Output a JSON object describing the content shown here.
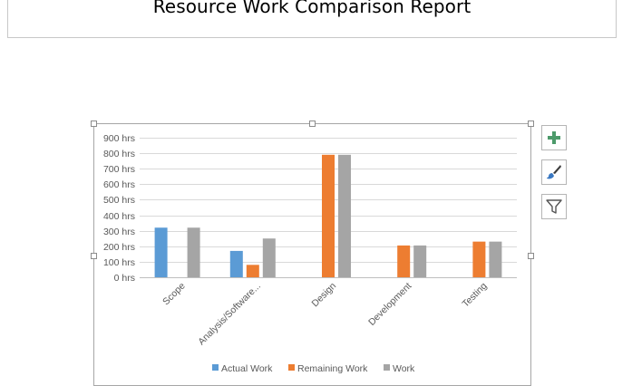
{
  "report": {
    "title": "Resource Work Comparison Report"
  },
  "chart_tools": {
    "add_element_icon": "plus-icon",
    "style_icon": "paintbrush-icon",
    "filter_icon": "funnel-icon"
  },
  "colors": {
    "actual_work": "#5b9bd5",
    "remaining_work": "#ed7d31",
    "work": "#a5a5a5",
    "add_icon": "#4c9a6a"
  },
  "chart_data": {
    "type": "bar",
    "categories": [
      "Scope",
      "Analysis/Software...",
      "Design",
      "Development",
      "Testing"
    ],
    "series": [
      {
        "name": "Actual Work",
        "values": [
          320,
          170,
          0,
          0,
          0
        ]
      },
      {
        "name": "Remaining Work",
        "values": [
          0,
          80,
          790,
          205,
          230
        ]
      },
      {
        "name": "Work",
        "values": [
          320,
          250,
          790,
          205,
          230
        ]
      }
    ],
    "y_ticks": [
      "0 hrs",
      "100 hrs",
      "200 hrs",
      "300 hrs",
      "400 hrs",
      "500 hrs",
      "600 hrs",
      "700 hrs",
      "800 hrs",
      "900 hrs"
    ],
    "ylim": [
      0,
      900
    ],
    "grid": true,
    "legend": "bottom"
  }
}
